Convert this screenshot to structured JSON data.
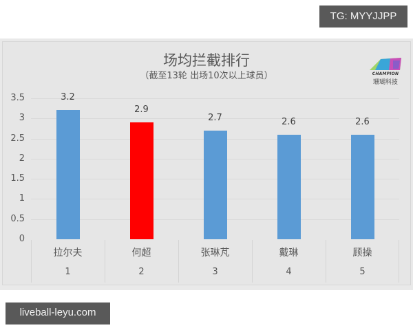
{
  "watermarks": {
    "top_right": "TG: MYYJJPP",
    "bottom_left": "liveball-leyu.com"
  },
  "logo": {
    "icon": "champion-logo-icon",
    "text_en": "CHAMPION",
    "text_cn": "珊瑚科技"
  },
  "chart_data": {
    "type": "bar",
    "title": "场均拦截排行",
    "subtitle": "（截至13轮 出场10次以上球员）",
    "categories": [
      "拉尔夫",
      "何超",
      "张琳芃",
      "戴琳",
      "顾操"
    ],
    "ranks": [
      "1",
      "2",
      "3",
      "4",
      "5"
    ],
    "values": [
      3.2,
      2.9,
      2.7,
      2.6,
      2.6
    ],
    "value_labels": [
      "3.2",
      "2.9",
      "2.7",
      "2.6",
      "2.6"
    ],
    "bar_colors": [
      "#5b9bd5",
      "#ff0000",
      "#5b9bd5",
      "#5b9bd5",
      "#5b9bd5"
    ],
    "highlight_index": 1,
    "xlabel": "",
    "ylabel": "",
    "ylim": [
      0,
      3.5
    ],
    "yticks": [
      "0",
      "0.5",
      "1",
      "1.5",
      "2",
      "2.5",
      "3",
      "3.5"
    ],
    "grid": true,
    "legend": null
  }
}
